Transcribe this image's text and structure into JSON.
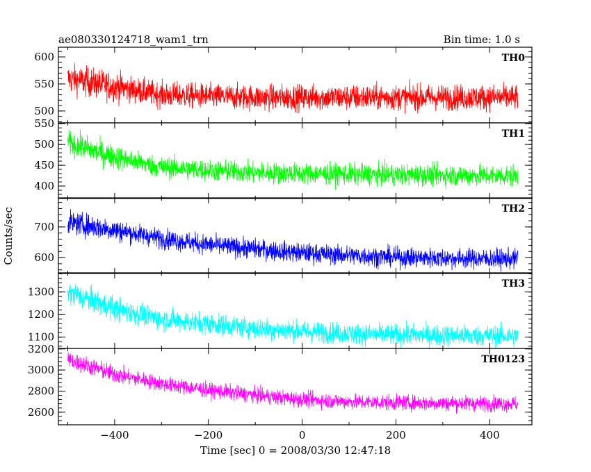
{
  "header": {
    "title": "ae080330124718_wam1_trn",
    "bin_time": "Bin time: 1.0 s"
  },
  "chart_data": {
    "type": "line",
    "title": "ae080330124718_wam1_trn",
    "subtitle": "Bin time: 1.0 s",
    "xlabel": "Time [sec] 0 = 2008/03/30 12:47:18",
    "ylabel": "Counts/sec",
    "xlim": [
      -520,
      490
    ],
    "x_range": [
      -500,
      460
    ],
    "x_ticks": [
      -400,
      -200,
      0,
      200,
      400
    ],
    "grid": false,
    "panels": [
      {
        "name": "TH0",
        "color": "#ff0000",
        "ylim": [
          478,
          618
        ],
        "y_ticks": [
          500,
          550,
          600
        ],
        "start_value": 560,
        "end_value": 525,
        "noise_amplitude": 55,
        "values": [
          [
            -500,
            560
          ],
          [
            -400,
            545
          ],
          [
            -300,
            530
          ],
          [
            -200,
            527
          ],
          [
            -100,
            525
          ],
          [
            0,
            525
          ],
          [
            100,
            525
          ],
          [
            200,
            525
          ],
          [
            300,
            525
          ],
          [
            400,
            525
          ],
          [
            460,
            525
          ]
        ]
      },
      {
        "name": "TH1",
        "color": "#00ff00",
        "ylim": [
          370,
          552
        ],
        "y_ticks": [
          400,
          450,
          500,
          550
        ],
        "start_value": 505,
        "end_value": 425,
        "noise_amplitude": 60,
        "values": [
          [
            -500,
            505
          ],
          [
            -400,
            470
          ],
          [
            -300,
            445
          ],
          [
            -200,
            438
          ],
          [
            -100,
            432
          ],
          [
            0,
            430
          ],
          [
            100,
            428
          ],
          [
            200,
            427
          ],
          [
            300,
            426
          ],
          [
            400,
            425
          ],
          [
            460,
            425
          ]
        ]
      },
      {
        "name": "TH2",
        "color": "#0000ff",
        "ylim": [
          548,
          795
        ],
        "y_ticks": [
          600,
          700
        ],
        "start_value": 715,
        "end_value": 595,
        "noise_amplitude": 75,
        "values": [
          [
            -500,
            715
          ],
          [
            -400,
            690
          ],
          [
            -300,
            662
          ],
          [
            -200,
            642
          ],
          [
            -100,
            628
          ],
          [
            0,
            615
          ],
          [
            100,
            607
          ],
          [
            200,
            601
          ],
          [
            300,
            598
          ],
          [
            400,
            596
          ],
          [
            460,
            595
          ]
        ]
      },
      {
        "name": "TH3",
        "color": "#00ffff",
        "ylim": [
          1050,
          1385
        ],
        "y_ticks": [
          1100,
          1200,
          1300
        ],
        "start_value": 1300,
        "end_value": 1105,
        "noise_amplitude": 110,
        "values": [
          [
            -500,
            1300
          ],
          [
            -400,
            1225
          ],
          [
            -300,
            1180
          ],
          [
            -200,
            1160
          ],
          [
            -100,
            1140
          ],
          [
            0,
            1125
          ],
          [
            100,
            1115
          ],
          [
            200,
            1110
          ],
          [
            300,
            1108
          ],
          [
            400,
            1106
          ],
          [
            460,
            1105
          ]
        ]
      },
      {
        "name": "TH0123",
        "color": "#ff00ff",
        "ylim": [
          2480,
          3205
        ],
        "y_ticks": [
          2600,
          2800,
          3000,
          3200
        ],
        "start_value": 3100,
        "end_value": 2680,
        "noise_amplitude": 170,
        "values": [
          [
            -500,
            3100
          ],
          [
            -400,
            2960
          ],
          [
            -300,
            2870
          ],
          [
            -200,
            2810
          ],
          [
            -100,
            2760
          ],
          [
            0,
            2720
          ],
          [
            100,
            2700
          ],
          [
            200,
            2690
          ],
          [
            300,
            2685
          ],
          [
            400,
            2682
          ],
          [
            460,
            2680
          ]
        ]
      }
    ]
  }
}
